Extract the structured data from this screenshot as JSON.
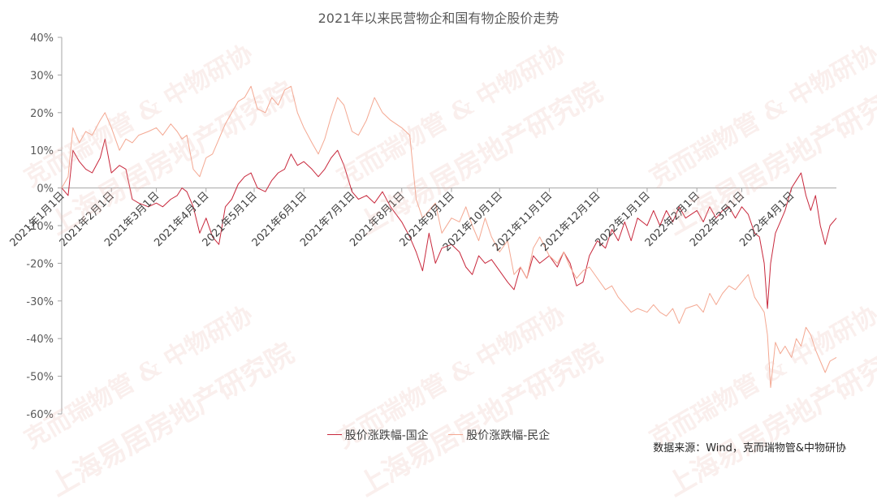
{
  "chart_data": {
    "type": "line",
    "title": "2021年以来民营物企和国有物企股价走势",
    "ylim": [
      -60,
      40
    ],
    "yticks": [
      "40%",
      "30%",
      "20%",
      "10%",
      "0%",
      "-10%",
      "-20%",
      "-30%",
      "-40%",
      "-50%",
      "-60%"
    ],
    "ytick_values": [
      40,
      30,
      20,
      10,
      0,
      -10,
      -20,
      -30,
      -40,
      -50,
      -60
    ],
    "xlim": [
      "2021-01-01",
      "2022-04-29"
    ],
    "xticks": [
      "2021年1月1日",
      "2021年2月1日",
      "2021年3月1日",
      "2021年4月1日",
      "2021年5月1日",
      "2021年6月1日",
      "2021年7月1日",
      "2021年8月1日",
      "2021年9月1日",
      "2021年10月1日",
      "2021年11月1日",
      "2021年12月1日",
      "2022年1月1日",
      "2022年2月1日",
      "2022年3月1日",
      "2022年4月1日"
    ],
    "xtick_dates": [
      "2021-01-01",
      "2021-02-01",
      "2021-03-01",
      "2021-04-01",
      "2021-05-01",
      "2021-06-01",
      "2021-07-01",
      "2021-08-01",
      "2021-09-01",
      "2021-10-01",
      "2021-11-01",
      "2021-12-01",
      "2022-01-01",
      "2022-02-01",
      "2022-03-01",
      "2022-04-01"
    ],
    "grid": false,
    "legend_position": "bottom",
    "series": [
      {
        "name": "股价涨跌幅-国企",
        "color": "#c8283c",
        "points": [
          [
            "2021-01-01",
            0
          ],
          [
            "2021-01-05",
            -2
          ],
          [
            "2021-01-08",
            10
          ],
          [
            "2021-01-12",
            7
          ],
          [
            "2021-01-16",
            5
          ],
          [
            "2021-01-20",
            4
          ],
          [
            "2021-01-25",
            8
          ],
          [
            "2021-01-28",
            13
          ],
          [
            "2021-02-01",
            4
          ],
          [
            "2021-02-06",
            6
          ],
          [
            "2021-02-10",
            5
          ],
          [
            "2021-02-14",
            -3
          ],
          [
            "2021-02-18",
            -4
          ],
          [
            "2021-02-24",
            -5
          ],
          [
            "2021-03-01",
            -4
          ],
          [
            "2021-03-05",
            -5
          ],
          [
            "2021-03-10",
            -3
          ],
          [
            "2021-03-14",
            -2
          ],
          [
            "2021-03-17",
            0
          ],
          [
            "2021-03-20",
            -1
          ],
          [
            "2021-03-24",
            -5
          ],
          [
            "2021-03-28",
            -12
          ],
          [
            "2021-04-01",
            -8
          ],
          [
            "2021-04-05",
            -13
          ],
          [
            "2021-04-09",
            -15
          ],
          [
            "2021-04-13",
            -5
          ],
          [
            "2021-04-17",
            -3
          ],
          [
            "2021-04-21",
            1
          ],
          [
            "2021-04-25",
            3
          ],
          [
            "2021-04-29",
            4
          ],
          [
            "2021-05-03",
            0
          ],
          [
            "2021-05-08",
            -1
          ],
          [
            "2021-05-12",
            2
          ],
          [
            "2021-05-16",
            4
          ],
          [
            "2021-05-20",
            5
          ],
          [
            "2021-05-24",
            9
          ],
          [
            "2021-05-28",
            6
          ],
          [
            "2021-06-01",
            7
          ],
          [
            "2021-06-06",
            5
          ],
          [
            "2021-06-10",
            3
          ],
          [
            "2021-06-14",
            5
          ],
          [
            "2021-06-18",
            8
          ],
          [
            "2021-06-22",
            10
          ],
          [
            "2021-06-26",
            6
          ],
          [
            "2021-07-01",
            -1
          ],
          [
            "2021-07-05",
            -3
          ],
          [
            "2021-07-10",
            -2
          ],
          [
            "2021-07-15",
            -4
          ],
          [
            "2021-07-20",
            -1
          ],
          [
            "2021-07-25",
            -5
          ],
          [
            "2021-08-01",
            -9
          ],
          [
            "2021-08-06",
            -13
          ],
          [
            "2021-08-10",
            -17
          ],
          [
            "2021-08-14",
            -22
          ],
          [
            "2021-08-18",
            -12
          ],
          [
            "2021-08-22",
            -20
          ],
          [
            "2021-08-26",
            -16
          ],
          [
            "2021-09-01",
            -15
          ],
          [
            "2021-09-06",
            -17
          ],
          [
            "2021-09-10",
            -21
          ],
          [
            "2021-09-14",
            -23
          ],
          [
            "2021-09-18",
            -18
          ],
          [
            "2021-09-22",
            -20
          ],
          [
            "2021-09-26",
            -19
          ],
          [
            "2021-10-01",
            -22
          ],
          [
            "2021-10-06",
            -25
          ],
          [
            "2021-10-10",
            -27
          ],
          [
            "2021-10-14",
            -21
          ],
          [
            "2021-10-18",
            -24
          ],
          [
            "2021-10-22",
            -18
          ],
          [
            "2021-10-26",
            -20
          ],
          [
            "2021-11-01",
            -18
          ],
          [
            "2021-11-06",
            -21
          ],
          [
            "2021-11-10",
            -17
          ],
          [
            "2021-11-14",
            -20
          ],
          [
            "2021-11-18",
            -26
          ],
          [
            "2021-11-22",
            -25
          ],
          [
            "2021-11-26",
            -18
          ],
          [
            "2021-12-01",
            -14
          ],
          [
            "2021-12-06",
            -16
          ],
          [
            "2021-12-10",
            -11
          ],
          [
            "2021-12-14",
            -14
          ],
          [
            "2021-12-18",
            -9
          ],
          [
            "2021-12-22",
            -14
          ],
          [
            "2021-12-26",
            -8
          ],
          [
            "2022-01-01",
            -10
          ],
          [
            "2022-01-05",
            -6
          ],
          [
            "2022-01-09",
            -10
          ],
          [
            "2022-01-13",
            -6
          ],
          [
            "2022-01-17",
            -9
          ],
          [
            "2022-01-21",
            -5
          ],
          [
            "2022-01-25",
            -8
          ],
          [
            "2022-02-01",
            -6
          ],
          [
            "2022-02-05",
            -9
          ],
          [
            "2022-02-09",
            -5
          ],
          [
            "2022-02-13",
            -8
          ],
          [
            "2022-02-17",
            -6
          ],
          [
            "2022-02-21",
            -5
          ],
          [
            "2022-02-25",
            -8
          ],
          [
            "2022-03-01",
            -5
          ],
          [
            "2022-03-05",
            -7
          ],
          [
            "2022-03-09",
            -12
          ],
          [
            "2022-03-12",
            -13
          ],
          [
            "2022-03-15",
            -20
          ],
          [
            "2022-03-17",
            -32
          ],
          [
            "2022-03-19",
            -20
          ],
          [
            "2022-03-22",
            -12
          ],
          [
            "2022-03-25",
            -9
          ],
          [
            "2022-03-28",
            -6
          ],
          [
            "2022-04-01",
            0
          ],
          [
            "2022-04-04",
            2
          ],
          [
            "2022-04-07",
            4
          ],
          [
            "2022-04-10",
            -2
          ],
          [
            "2022-04-13",
            -6
          ],
          [
            "2022-04-16",
            -2
          ],
          [
            "2022-04-19",
            -10
          ],
          [
            "2022-04-22",
            -15
          ],
          [
            "2022-04-25",
            -10
          ],
          [
            "2022-04-29",
            -8
          ]
        ]
      },
      {
        "name": "股价涨跌幅-民企",
        "color": "#f4a892",
        "points": [
          [
            "2021-01-01",
            0
          ],
          [
            "2021-01-05",
            3
          ],
          [
            "2021-01-08",
            16
          ],
          [
            "2021-01-12",
            12
          ],
          [
            "2021-01-16",
            15
          ],
          [
            "2021-01-20",
            14
          ],
          [
            "2021-01-25",
            18
          ],
          [
            "2021-01-28",
            20
          ],
          [
            "2021-02-01",
            16
          ],
          [
            "2021-02-06",
            10
          ],
          [
            "2021-02-10",
            13
          ],
          [
            "2021-02-14",
            12
          ],
          [
            "2021-02-18",
            14
          ],
          [
            "2021-02-24",
            15
          ],
          [
            "2021-03-01",
            16
          ],
          [
            "2021-03-05",
            14
          ],
          [
            "2021-03-10",
            17
          ],
          [
            "2021-03-14",
            15
          ],
          [
            "2021-03-17",
            13
          ],
          [
            "2021-03-20",
            14
          ],
          [
            "2021-03-24",
            5
          ],
          [
            "2021-03-28",
            3
          ],
          [
            "2021-04-01",
            8
          ],
          [
            "2021-04-05",
            9
          ],
          [
            "2021-04-09",
            13
          ],
          [
            "2021-04-13",
            17
          ],
          [
            "2021-04-17",
            20
          ],
          [
            "2021-04-21",
            23
          ],
          [
            "2021-04-25",
            24
          ],
          [
            "2021-04-29",
            27
          ],
          [
            "2021-05-03",
            21
          ],
          [
            "2021-05-08",
            20
          ],
          [
            "2021-05-12",
            24
          ],
          [
            "2021-05-16",
            22
          ],
          [
            "2021-05-20",
            26
          ],
          [
            "2021-05-24",
            27
          ],
          [
            "2021-05-28",
            20
          ],
          [
            "2021-06-01",
            16
          ],
          [
            "2021-06-06",
            12
          ],
          [
            "2021-06-10",
            9
          ],
          [
            "2021-06-14",
            13
          ],
          [
            "2021-06-18",
            19
          ],
          [
            "2021-06-22",
            24
          ],
          [
            "2021-06-26",
            22
          ],
          [
            "2021-07-01",
            15
          ],
          [
            "2021-07-05",
            14
          ],
          [
            "2021-07-10",
            18
          ],
          [
            "2021-07-15",
            24
          ],
          [
            "2021-07-20",
            20
          ],
          [
            "2021-07-25",
            18
          ],
          [
            "2021-08-01",
            16
          ],
          [
            "2021-08-06",
            14
          ],
          [
            "2021-08-10",
            -3
          ],
          [
            "2021-08-14",
            -8
          ],
          [
            "2021-08-18",
            -6
          ],
          [
            "2021-08-22",
            -4
          ],
          [
            "2021-08-26",
            -12
          ],
          [
            "2021-09-01",
            -8
          ],
          [
            "2021-09-06",
            -9
          ],
          [
            "2021-09-10",
            -5
          ],
          [
            "2021-09-14",
            -10
          ],
          [
            "2021-09-18",
            -14
          ],
          [
            "2021-09-22",
            -8
          ],
          [
            "2021-09-26",
            -13
          ],
          [
            "2021-10-01",
            -17
          ],
          [
            "2021-10-06",
            -14
          ],
          [
            "2021-10-10",
            -23
          ],
          [
            "2021-10-14",
            -21
          ],
          [
            "2021-10-18",
            -24
          ],
          [
            "2021-10-22",
            -16
          ],
          [
            "2021-10-26",
            -13
          ],
          [
            "2021-11-01",
            -18
          ],
          [
            "2021-11-06",
            -20
          ],
          [
            "2021-11-10",
            -17
          ],
          [
            "2021-11-14",
            -21
          ],
          [
            "2021-11-18",
            -24
          ],
          [
            "2021-11-22",
            -22
          ],
          [
            "2021-11-26",
            -21
          ],
          [
            "2021-12-01",
            -24
          ],
          [
            "2021-12-06",
            -27
          ],
          [
            "2021-12-10",
            -26
          ],
          [
            "2021-12-14",
            -29
          ],
          [
            "2021-12-18",
            -31
          ],
          [
            "2021-12-22",
            -33
          ],
          [
            "2021-12-26",
            -32
          ],
          [
            "2022-01-01",
            -33
          ],
          [
            "2022-01-05",
            -31
          ],
          [
            "2022-01-09",
            -33
          ],
          [
            "2022-01-13",
            -34
          ],
          [
            "2022-01-17",
            -32
          ],
          [
            "2022-01-21",
            -36
          ],
          [
            "2022-01-25",
            -32
          ],
          [
            "2022-02-01",
            -31
          ],
          [
            "2022-02-05",
            -33
          ],
          [
            "2022-02-09",
            -28
          ],
          [
            "2022-02-13",
            -31
          ],
          [
            "2022-02-17",
            -28
          ],
          [
            "2022-02-21",
            -26
          ],
          [
            "2022-02-25",
            -27
          ],
          [
            "2022-03-01",
            -25
          ],
          [
            "2022-03-05",
            -23
          ],
          [
            "2022-03-09",
            -29
          ],
          [
            "2022-03-12",
            -31
          ],
          [
            "2022-03-15",
            -33
          ],
          [
            "2022-03-17",
            -39
          ],
          [
            "2022-03-19",
            -53
          ],
          [
            "2022-03-22",
            -41
          ],
          [
            "2022-03-25",
            -44
          ],
          [
            "2022-03-28",
            -42
          ],
          [
            "2022-04-01",
            -45
          ],
          [
            "2022-04-04",
            -40
          ],
          [
            "2022-04-07",
            -42
          ],
          [
            "2022-04-10",
            -37
          ],
          [
            "2022-04-13",
            -39
          ],
          [
            "2022-04-16",
            -43
          ],
          [
            "2022-04-19",
            -46
          ],
          [
            "2022-04-22",
            -49
          ],
          [
            "2022-04-25",
            -46
          ],
          [
            "2022-04-29",
            -45
          ]
        ]
      }
    ]
  },
  "source": "数据来源：Wind，克而瑞物管&中物研协",
  "watermark": {
    "line1": "克而瑞物管 & 中物研协",
    "line2": "上海易居房地产研究院"
  }
}
